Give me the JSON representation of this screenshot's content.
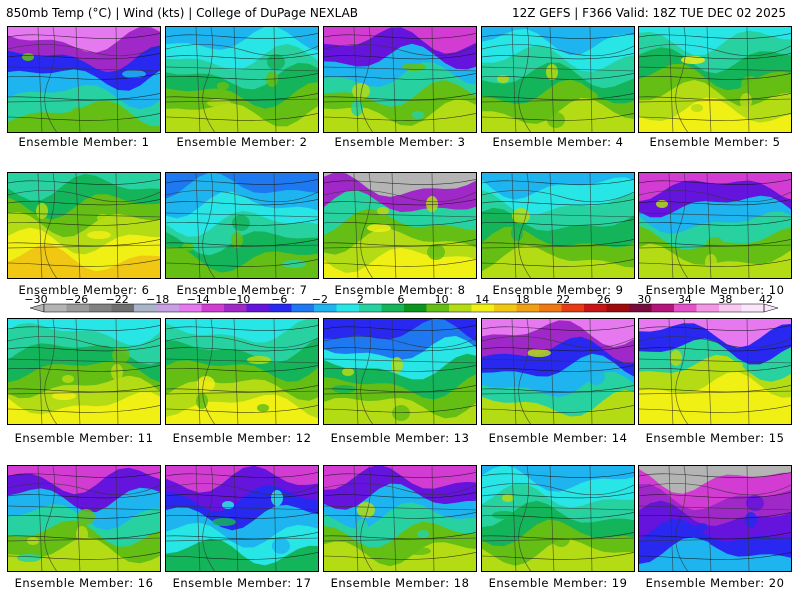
{
  "header": {
    "left_title": "850mb Temp (°C) | Wind (kts) | College of DuPage NEXLAB",
    "right_title": "12Z GEFS | F366 Valid: 18Z TUE DEC 02 2025"
  },
  "members": [
    {
      "label": "Ensemble Member: 1",
      "style": "cold_west"
    },
    {
      "label": "Ensemble Member: 2",
      "style": "mild"
    },
    {
      "label": "Ensemble Member: 3",
      "style": "cold_north"
    },
    {
      "label": "Ensemble Member: 4",
      "style": "mild"
    },
    {
      "label": "Ensemble Member: 5",
      "style": "warm_south"
    },
    {
      "label": "Ensemble Member: 6",
      "style": "warm"
    },
    {
      "label": "Ensemble Member: 7",
      "style": "mild_cool"
    },
    {
      "label": "Ensemble Member: 8",
      "style": "front"
    },
    {
      "label": "Ensemble Member: 9",
      "style": "mild"
    },
    {
      "label": "Ensemble Member: 10",
      "style": "cold_north"
    },
    {
      "label": "Ensemble Member: 11",
      "style": "warm_south"
    },
    {
      "label": "Ensemble Member: 12",
      "style": "warm_south"
    },
    {
      "label": "Ensemble Member: 13",
      "style": "low"
    },
    {
      "label": "Ensemble Member: 14",
      "style": "cold_east"
    },
    {
      "label": "Ensemble Member: 15",
      "style": "front_warm"
    },
    {
      "label": "Ensemble Member: 16",
      "style": "cold_north"
    },
    {
      "label": "Ensemble Member: 17",
      "style": "cold"
    },
    {
      "label": "Ensemble Member: 18",
      "style": "cold_north"
    },
    {
      "label": "Ensemble Member: 19",
      "style": "mild"
    },
    {
      "label": "Ensemble Member: 20",
      "style": "very_cold"
    }
  ],
  "colorbar": {
    "ticks": [
      "-30",
      "-26",
      "-22",
      "-18",
      "-14",
      "-10",
      "-6",
      "-2",
      "2",
      "6",
      "10",
      "14",
      "18",
      "22",
      "26",
      "30",
      "34",
      "38",
      "42"
    ],
    "colors": [
      "#b4b4b4",
      "#9a9a9a",
      "#828282",
      "#6e6e6e",
      "#a8b4c8",
      "#c8a0e6",
      "#e678f0",
      "#d23cd2",
      "#a028c8",
      "#6414dc",
      "#2828f0",
      "#1e78f0",
      "#1eb4f0",
      "#28e6e6",
      "#28d2a0",
      "#14b45a",
      "#0a961e",
      "#64be14",
      "#b4dc14",
      "#f0f014",
      "#f0c814",
      "#f0a014",
      "#f07814",
      "#e63c14",
      "#c81414",
      "#a00a0a",
      "#780a3c",
      "#b4147c",
      "#e650c8",
      "#f496e6",
      "#f8c8f0",
      "#fae6fa"
    ]
  }
}
